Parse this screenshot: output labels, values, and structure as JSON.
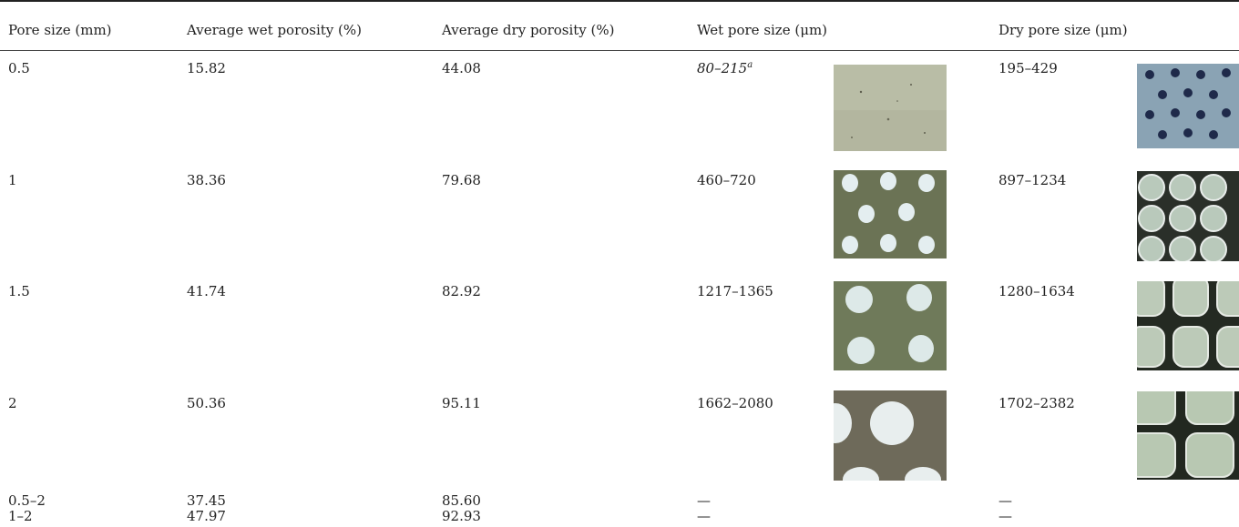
{
  "table": {
    "headers": [
      "Pore size (mm)",
      "Average wet porosity (%)",
      "Average dry porosity (%)",
      "Wet pore size (μm)",
      "Dry pore size (μm)"
    ],
    "rows": [
      {
        "pore_size": "0.5",
        "wet_porosity": "15.82",
        "dry_porosity": "44.08",
        "wet_pore_size": "80–215",
        "wet_footnote": "a",
        "dry_pore_size": "195–429"
      },
      {
        "pore_size": "1",
        "wet_porosity": "38.36",
        "dry_porosity": "79.68",
        "wet_pore_size": "460–720",
        "dry_pore_size": "897–1234"
      },
      {
        "pore_size": "1.5",
        "wet_porosity": "41.74",
        "dry_porosity": "82.92",
        "wet_pore_size": "1217–1365",
        "dry_pore_size": "1280–1634"
      },
      {
        "pore_size": "2",
        "wet_porosity": "50.36",
        "dry_porosity": "95.11",
        "wet_pore_size": "1662–2080",
        "dry_pore_size": "1702–2382"
      },
      {
        "pore_size": "0.5–2",
        "wet_porosity": "37.45",
        "dry_porosity": "85.60",
        "wet_pore_size": "—",
        "dry_pore_size": "—"
      },
      {
        "pore_size": "1–2",
        "wet_porosity": "47.97",
        "dry_porosity": "92.93",
        "wet_pore_size": "—",
        "dry_pore_size": "—"
      }
    ]
  },
  "colors": {
    "wet_background": "#7c8663",
    "wet_pore": "#e4eef0",
    "dry_background": "#232a22",
    "dry_pore": "#b9c9bb"
  }
}
